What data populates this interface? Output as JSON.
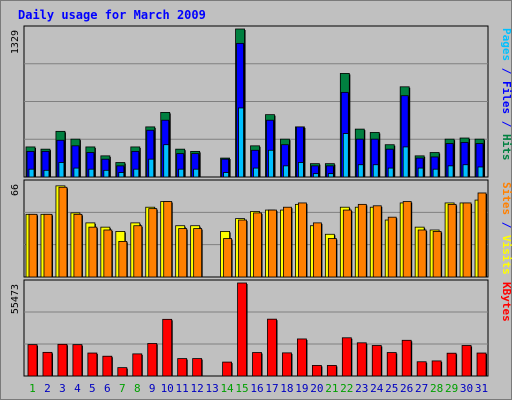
{
  "colors": {
    "background": "#c0c0c0",
    "panel": "#c0c0c0",
    "grid": "#808080",
    "pages": "#00c0ff",
    "files": "#0000ff",
    "hits": "#008040",
    "sites": "#ff8000",
    "visits": "#ffff00",
    "kbytes": "#ff0000",
    "title": "#0000ff",
    "weekend_day": "#00a000",
    "weekday": "#0000c0"
  },
  "chart_data": {
    "type": "bar",
    "title": "Daily usage for March 2009",
    "categories": [
      "1",
      "2",
      "3",
      "4",
      "5",
      "6",
      "7",
      "8",
      "9",
      "10",
      "11",
      "12",
      "13",
      "14",
      "15",
      "16",
      "17",
      "18",
      "19",
      "20",
      "21",
      "22",
      "23",
      "24",
      "25",
      "26",
      "27",
      "28",
      "29",
      "30",
      "31"
    ],
    "weekend_days": [
      "1",
      "7",
      "8",
      "14",
      "15",
      "21",
      "22",
      "28",
      "29"
    ],
    "panels": [
      {
        "label_parts": [
          {
            "text": "Pages",
            "color_key": "pages"
          },
          {
            "text": " / ",
            "color_key": "title"
          },
          {
            "text": "Files",
            "color_key": "files"
          },
          {
            "text": " / ",
            "color_key": "title"
          },
          {
            "text": "Hits",
            "color_key": "hits"
          }
        ],
        "ymax_label": "1329",
        "ylim": [
          0,
          1329
        ],
        "series": [
          {
            "name": "Hits",
            "color_key": "hits",
            "values": [
              270,
              250,
              410,
              340,
              270,
              190,
              130,
              270,
              450,
              580,
              250,
              230,
              0,
              170,
              1329,
              280,
              560,
              340,
              450,
              120,
              120,
              930,
              430,
              400,
              290,
              810,
              190,
              220,
              340,
              350,
              340
            ]
          },
          {
            "name": "Files",
            "color_key": "files",
            "values": [
              230,
              230,
              330,
              280,
              220,
              160,
              100,
              230,
              420,
              510,
              210,
              210,
              0,
              160,
              1200,
              240,
              510,
              290,
              450,
              100,
              100,
              760,
              340,
              340,
              250,
              730,
              170,
              180,
              300,
              310,
              300
            ]
          },
          {
            "name": "Pages",
            "color_key": "pages",
            "values": [
              70,
              60,
              130,
              80,
              70,
              60,
              40,
              70,
              160,
              290,
              70,
              70,
              0,
              40,
              620,
              80,
              240,
              100,
              130,
              30,
              30,
              390,
              110,
              110,
              80,
              270,
              80,
              70,
              100,
              110,
              90
            ]
          }
        ]
      },
      {
        "label_parts": [
          {
            "text": "Sites",
            "color_key": "sites"
          },
          {
            "text": " / ",
            "color_key": "title"
          },
          {
            "text": "Visits",
            "color_key": "visits"
          }
        ],
        "ymax_label": "66",
        "ylim": [
          0,
          66
        ],
        "series": [
          {
            "name": "Visits",
            "color_key": "visits",
            "values": [
              44,
              44,
              64,
              45,
              38,
              35,
              32,
              38,
              49,
              53,
              36,
              36,
              0,
              32,
              41,
              46,
              47,
              47,
              51,
              36,
              30,
              49,
              49,
              49,
              40,
              52,
              35,
              33,
              52,
              52,
              54
            ]
          },
          {
            "name": "Sites",
            "color_key": "sites",
            "values": [
              44,
              44,
              63,
              44,
              35,
              33,
              25,
              36,
              48,
              53,
              34,
              34,
              0,
              27,
              40,
              45,
              47,
              49,
              52,
              38,
              27,
              47,
              51,
              50,
              42,
              53,
              33,
              32,
              51,
              52,
              59
            ]
          }
        ]
      },
      {
        "label_parts": [
          {
            "text": "KBytes",
            "color_key": "kbytes"
          }
        ],
        "ymax_label": "55473",
        "ylim": [
          0,
          55473
        ],
        "series": [
          {
            "name": "KBytes",
            "color_key": "kbytes",
            "values": [
              18700,
              14100,
              18900,
              18700,
              13700,
              11800,
              5000,
              13200,
              19400,
              33800,
              10400,
              10400,
              0,
              8300,
              55473,
              14000,
              33900,
              13800,
              22100,
              6300,
              6300,
              22800,
              19800,
              18200,
              14000,
              21300,
              8500,
              9000,
              13600,
              18200,
              13700
            ]
          }
        ]
      }
    ]
  }
}
